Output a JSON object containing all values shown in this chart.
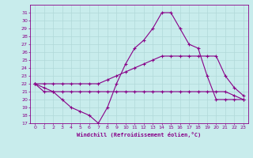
{
  "xlabel": "Windchill (Refroidissement éolien,°C)",
  "xlim": [
    -0.5,
    23.5
  ],
  "ylim": [
    17,
    32
  ],
  "yticks": [
    17,
    18,
    19,
    20,
    21,
    22,
    23,
    24,
    25,
    26,
    27,
    28,
    29,
    30,
    31
  ],
  "xticks": [
    0,
    1,
    2,
    3,
    4,
    5,
    6,
    7,
    8,
    9,
    10,
    11,
    12,
    13,
    14,
    15,
    16,
    17,
    18,
    19,
    20,
    21,
    22,
    23
  ],
  "bg_color": "#c8ecec",
  "grid_color": "#b0d8d8",
  "line_color": "#880088",
  "line1_x": [
    0,
    1,
    2,
    3,
    4,
    5,
    6,
    7,
    8,
    9,
    10,
    11,
    12,
    13,
    14,
    15,
    16,
    17,
    18,
    19,
    20,
    21,
    22,
    23
  ],
  "line1_y": [
    22,
    21,
    21,
    20,
    19,
    18.5,
    18,
    17,
    19,
    22,
    24.5,
    26.5,
    27.5,
    29,
    31,
    31,
    29,
    27,
    26.5,
    23,
    20,
    20,
    20,
    20
  ],
  "line2_x": [
    0,
    1,
    2,
    3,
    4,
    5,
    6,
    7,
    8,
    9,
    10,
    11,
    12,
    13,
    14,
    15,
    16,
    17,
    18,
    19,
    20,
    21,
    22,
    23
  ],
  "line2_y": [
    22,
    21.5,
    21,
    21,
    21,
    21,
    21,
    21,
    21,
    21,
    21,
    21,
    21,
    21,
    21,
    21,
    21,
    21,
    21,
    21,
    21,
    21,
    20.5,
    20
  ],
  "line3_x": [
    0,
    1,
    2,
    3,
    4,
    5,
    6,
    7,
    8,
    9,
    10,
    11,
    12,
    13,
    14,
    15,
    16,
    17,
    18,
    19,
    20,
    21,
    22,
    23
  ],
  "line3_y": [
    22,
    22,
    22,
    22,
    22,
    22,
    22,
    22,
    22.5,
    23,
    23.5,
    24,
    24.5,
    25,
    25.5,
    25.5,
    25.5,
    25.5,
    25.5,
    25.5,
    25.5,
    23,
    21.5,
    20.5
  ]
}
